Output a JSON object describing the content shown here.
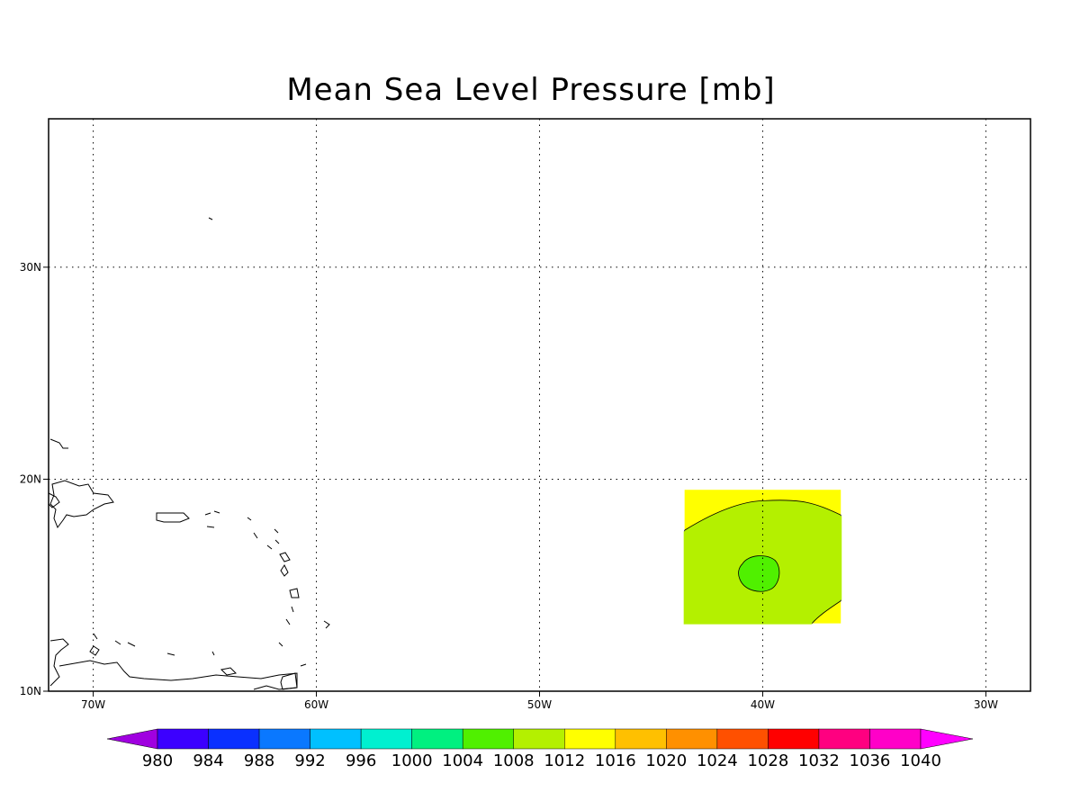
{
  "title": "Mean Sea Level Pressure [mb]",
  "map": {
    "lon_range": [
      -72,
      -28
    ],
    "lat_range": [
      10,
      37
    ],
    "grid": true,
    "lon_ticks": [
      {
        "lon": -70,
        "label": "70W"
      },
      {
        "lon": -60,
        "label": "60W"
      },
      {
        "lon": -50,
        "label": "50W"
      },
      {
        "lon": -40,
        "label": "40W"
      },
      {
        "lon": -30,
        "label": "30W"
      }
    ],
    "lat_ticks": [
      {
        "lat": 10,
        "label": "10N"
      },
      {
        "lat": 20,
        "label": "20N"
      },
      {
        "lat": 30,
        "label": "30N"
      }
    ],
    "data_patch": {
      "lon_range": [
        -43.5,
        -36.5
      ],
      "lat_range": [
        13.2,
        19.5
      ],
      "background_level": 1012,
      "main_level": 1008,
      "center_level": 1004,
      "center": [
        -40.1,
        15.5
      ]
    }
  },
  "colorbar": {
    "levels": [
      "980",
      "984",
      "988",
      "992",
      "996",
      "1000",
      "1004",
      "1008",
      "1012",
      "1016",
      "1020",
      "1024",
      "1028",
      "1032",
      "1036",
      "1040"
    ],
    "colors": [
      "#a000e0",
      "#3c00ff",
      "#0a30ff",
      "#0a78ff",
      "#00c0ff",
      "#00f0d0",
      "#00f080",
      "#50f000",
      "#b4f000",
      "#ffff00",
      "#ffc000",
      "#ff9000",
      "#ff5000",
      "#ff0000",
      "#ff0080",
      "#ff00c8",
      "#ff00ff"
    ]
  }
}
